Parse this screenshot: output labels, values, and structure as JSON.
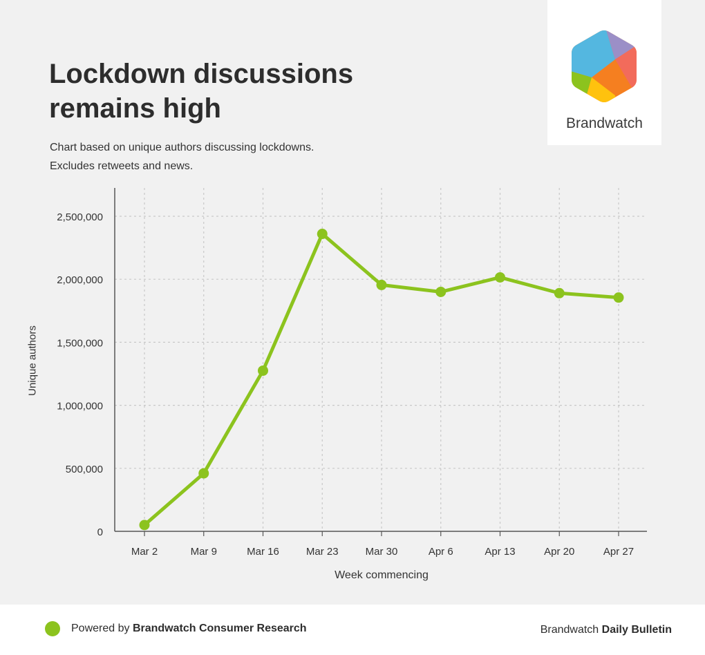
{
  "header": {
    "title_line1": "Lockdown discussions",
    "title_line2": "remains high",
    "subtitle_line1": "Chart based on unique authors discussing lockdowns.",
    "subtitle_line2": "Excludes retweets and news."
  },
  "logo": {
    "name": "Brandwatch",
    "icon": "brandwatch-hexagon-logo"
  },
  "chart_data": {
    "type": "line",
    "categories": [
      "Mar 2",
      "Mar 9",
      "Mar 16",
      "Mar 23",
      "Mar 30",
      "Apr 6",
      "Apr 13",
      "Apr 20",
      "Apr 27"
    ],
    "series": [
      {
        "values": [
          50000,
          460000,
          1275000,
          2360000,
          1955000,
          1900000,
          2015000,
          1890000,
          1855000
        ]
      }
    ],
    "yticks": [
      "0",
      "500,000",
      "1,000,000",
      "1,500,000",
      "2,000,000",
      "2,500,000"
    ],
    "ylim": [
      0,
      2500000
    ],
    "xlabel": "Week commencing",
    "ylabel": "Unique authors",
    "grid": true,
    "colors": {
      "line": "#8cc31e",
      "grid": "#c8c8c8",
      "axis": "#555555"
    }
  },
  "footer": {
    "left_prefix": "Powered by ",
    "left_bold": "Brandwatch Consumer Research",
    "right_prefix": "Brandwatch ",
    "right_bold": "Daily Bulletin"
  }
}
